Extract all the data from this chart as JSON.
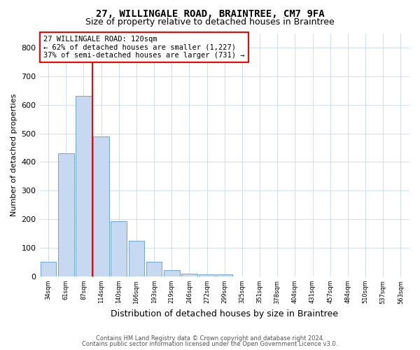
{
  "title": "27, WILLINGALE ROAD, BRAINTREE, CM7 9FA",
  "subtitle": "Size of property relative to detached houses in Braintree",
  "xlabel": "Distribution of detached houses by size in Braintree",
  "ylabel": "Number of detached properties",
  "bar_values": [
    52,
    430,
    630,
    490,
    193,
    125,
    50,
    22,
    9,
    8,
    8,
    0,
    0,
    0,
    0,
    0,
    0,
    0,
    0,
    0
  ],
  "x_labels": [
    "34sqm",
    "61sqm",
    "87sqm",
    "114sqm",
    "140sqm",
    "166sqm",
    "193sqm",
    "219sqm",
    "246sqm",
    "272sqm",
    "299sqm",
    "325sqm",
    "351sqm",
    "378sqm",
    "404sqm",
    "431sqm",
    "457sqm",
    "484sqm",
    "510sqm",
    "537sqm",
    "563sqm"
  ],
  "bar_color": "#c6d9f0",
  "bar_edge_color": "#5b9bd5",
  "grid_color": "#d0dfe8",
  "vline_color": "red",
  "annotation_text": "27 WILLINGALE ROAD: 120sqm\n← 62% of detached houses are smaller (1,227)\n37% of semi-detached houses are larger (731) →",
  "annotation_box_color": "white",
  "annotation_box_edge": "red",
  "ylim": [
    0,
    850
  ],
  "yticks": [
    0,
    100,
    200,
    300,
    400,
    500,
    600,
    700,
    800
  ],
  "title_fontsize": 10,
  "subtitle_fontsize": 9,
  "footer_line1": "Contains HM Land Registry data © Crown copyright and database right 2024.",
  "footer_line2": "Contains public sector information licensed under the Open Government Licence v3.0."
}
